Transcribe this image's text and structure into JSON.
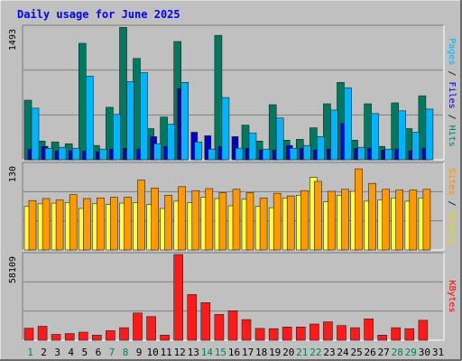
{
  "chart_data": {
    "type": "bar",
    "title": "Daily usage for June 2025",
    "days": [
      {
        "label": "1",
        "weekend": true
      },
      {
        "label": "2",
        "weekend": false
      },
      {
        "label": "3",
        "weekend": false
      },
      {
        "label": "4",
        "weekend": false
      },
      {
        "label": "5",
        "weekend": false
      },
      {
        "label": "6",
        "weekend": false
      },
      {
        "label": "7",
        "weekend": true
      },
      {
        "label": "8",
        "weekend": true
      },
      {
        "label": "9",
        "weekend": false
      },
      {
        "label": "10",
        "weekend": false
      },
      {
        "label": "11",
        "weekend": false
      },
      {
        "label": "12",
        "weekend": false
      },
      {
        "label": "13",
        "weekend": false
      },
      {
        "label": "14",
        "weekend": true
      },
      {
        "label": "15",
        "weekend": true
      },
      {
        "label": "16",
        "weekend": false
      },
      {
        "label": "17",
        "weekend": false
      },
      {
        "label": "18",
        "weekend": false
      },
      {
        "label": "19",
        "weekend": false
      },
      {
        "label": "20",
        "weekend": false
      },
      {
        "label": "21",
        "weekend": true
      },
      {
        "label": "22",
        "weekend": true
      },
      {
        "label": "23",
        "weekend": false
      },
      {
        "label": "24",
        "weekend": false
      },
      {
        "label": "25",
        "weekend": false
      },
      {
        "label": "26",
        "weekend": false
      },
      {
        "label": "27",
        "weekend": false
      },
      {
        "label": "28",
        "weekend": true
      },
      {
        "label": "29",
        "weekend": true
      },
      {
        "label": "30",
        "weekend": false
      },
      {
        "label": "31",
        "weekend": false
      }
    ],
    "panels": [
      {
        "key": "top",
        "max_label": "1493",
        "ymax": 1493,
        "right_label": [
          {
            "text": "Pages",
            "color": "#00b0ff"
          },
          {
            "text": " / ",
            "color": "#000000"
          },
          {
            "text": "Files",
            "color": "#0000c0"
          },
          {
            "text": " / ",
            "color": "#000000"
          },
          {
            "text": "Hits",
            "color": "#008060"
          }
        ],
        "series": [
          {
            "name": "Hits",
            "color": "#007a5e",
            "values": [
              670,
              210,
              200,
              180,
              1310,
              160,
              590,
              1490,
              1140,
              350,
              480,
              1330,
              0,
              0,
              1400,
              0,
              390,
              210,
              620,
              220,
              230,
              360,
              630,
              870,
              220,
              630,
              150,
              640,
              350,
              720,
              0
            ]
          },
          {
            "name": "Files",
            "color": "#0000c8",
            "values": [
              120,
              150,
              100,
              100,
              100,
              90,
              120,
              130,
              120,
              260,
              150,
              800,
              310,
              270,
              150,
              260,
              130,
              110,
              110,
              160,
              130,
              110,
              120,
              410,
              130,
              130,
              110,
              120,
              100,
              130,
              0
            ]
          },
          {
            "name": "Pages",
            "color": "#00b4ff",
            "values": [
              580,
              130,
              140,
              130,
              940,
              120,
              510,
              880,
              980,
              180,
              400,
              870,
              200,
              120,
              700,
              130,
              300,
              120,
              470,
              130,
              160,
              260,
              560,
              810,
              140,
              520,
              120,
              550,
              310,
              570,
              0
            ]
          }
        ]
      },
      {
        "key": "middle",
        "max_label": "130",
        "ymax": 130,
        "right_label": [
          {
            "text": "Sites",
            "color": "#ff8c00"
          },
          {
            "text": " / ",
            "color": "#000000"
          },
          {
            "text": "Visits",
            "color": "#e8d800"
          }
        ],
        "series": [
          {
            "name": "Visits",
            "color": "#ffff40",
            "values": [
              66,
              70,
              71,
              72,
              63,
              70,
              69,
              71,
              72,
              69,
              63,
              74,
              72,
              80,
              78,
              67,
              77,
              66,
              64,
              79,
              83,
              110,
              73,
              83,
              89,
              74,
              76,
              79,
              74,
              79,
              0
            ]
          },
          {
            "name": "Sites",
            "color": "#ff9900",
            "values": [
              75,
              78,
              76,
              84,
              78,
              79,
              80,
              80,
              106,
              94,
              83,
              96,
              90,
              93,
              87,
              92,
              87,
              79,
              86,
              82,
              90,
              104,
              89,
              92,
              123,
              101,
              92,
              91,
              91,
              92,
              0
            ]
          }
        ]
      },
      {
        "key": "bottom",
        "max_label": "58109",
        "ymax": 58109,
        "right_label": [
          {
            "text": "KBytes",
            "color": "#ff0000"
          }
        ],
        "series": [
          {
            "name": "KBytes",
            "color": "#ff1a1a",
            "values": [
              8200,
              9500,
              4000,
              4500,
              5500,
              3500,
              6500,
              8500,
              18500,
              16000,
              3500,
              58109,
              31000,
              25500,
              17500,
              20000,
              14000,
              8000,
              7800,
              9000,
              9000,
              11000,
              12500,
              10000,
              8500,
              14500,
              3500,
              8500,
              7800,
              13500,
              0
            ]
          }
        ]
      }
    ],
    "colors": {
      "background": "#c0c0c0",
      "border_dark": "#808080",
      "title": "#0000ff",
      "weekday_label": "#000000",
      "weekend_label": "#00805c",
      "grid": "#808080"
    },
    "grid": true,
    "legend_position": "right-vertical"
  }
}
